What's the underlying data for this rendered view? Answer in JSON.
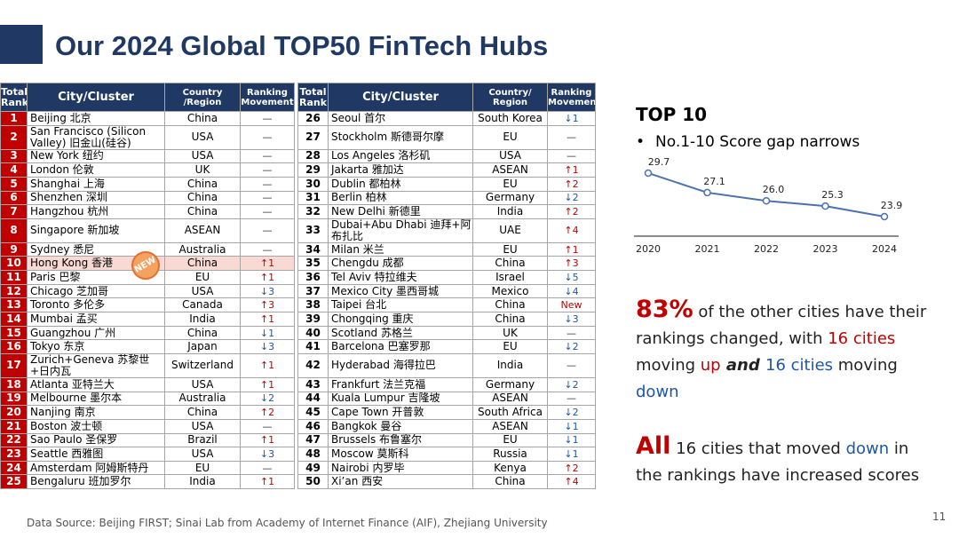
{
  "title": "Our 2024 Global TOP50 FinTech Hubs",
  "headers": {
    "rank": "Total\nRank",
    "city": "City/Cluster",
    "country_left": "Country\n/Region",
    "country_right": "Country/\nRegion",
    "movement": "Ranking\nMovement"
  },
  "left_rows": [
    {
      "rank": "1",
      "city": "Beijing 北京",
      "country": "China",
      "move": "—",
      "dir": "same"
    },
    {
      "rank": "2",
      "city": "San Francisco (Silicon Valley) 旧金山(硅谷)",
      "country": "USA",
      "move": "—",
      "dir": "same",
      "tall": true
    },
    {
      "rank": "3",
      "city": "New York 纽约",
      "country": "USA",
      "move": "—",
      "dir": "same"
    },
    {
      "rank": "4",
      "city": "London 伦敦",
      "country": "UK",
      "move": "—",
      "dir": "same"
    },
    {
      "rank": "5",
      "city": "Shanghai 上海",
      "country": "China",
      "move": "—",
      "dir": "same"
    },
    {
      "rank": "6",
      "city": "Shenzhen 深圳",
      "country": "China",
      "move": "—",
      "dir": "same"
    },
    {
      "rank": "7",
      "city": "Hangzhou 杭州",
      "country": "China",
      "move": "—",
      "dir": "same"
    },
    {
      "rank": "8",
      "city": "Singapore 新加坡",
      "country": "ASEAN",
      "move": "—",
      "dir": "same",
      "tall": true
    },
    {
      "rank": "9",
      "city": "Sydney 悉尼",
      "country": "Australia",
      "move": "—",
      "dir": "same"
    },
    {
      "rank": "10",
      "city": "Hong Kong 香港",
      "country": "China",
      "move": "↑1",
      "dir": "up",
      "hl": true
    },
    {
      "rank": "11",
      "city": "Paris 巴黎",
      "country": "EU",
      "move": "↑1",
      "dir": "up"
    },
    {
      "rank": "12",
      "city": "Chicago 芝加哥",
      "country": "USA",
      "move": "↓3",
      "dir": "down"
    },
    {
      "rank": "13",
      "city": "Toronto 多伦多",
      "country": "Canada",
      "move": "↑3",
      "dir": "up"
    },
    {
      "rank": "14",
      "city": "Mumbai 孟买",
      "country": "India",
      "move": "↑1",
      "dir": "up"
    },
    {
      "rank": "15",
      "city": "Guangzhou 广州",
      "country": "China",
      "move": "↓1",
      "dir": "down"
    },
    {
      "rank": "16",
      "city": "Tokyo 东京",
      "country": "Japan",
      "move": "↓3",
      "dir": "down"
    },
    {
      "rank": "17",
      "city": "Zurich+Geneva 苏黎世+日内瓦",
      "country": "Switzerland",
      "move": "↑1",
      "dir": "up",
      "tall": true
    },
    {
      "rank": "18",
      "city": "Atlanta 亚特兰大",
      "country": "USA",
      "move": "↑1",
      "dir": "up"
    },
    {
      "rank": "19",
      "city": "Melbourne 墨尔本",
      "country": "Australia",
      "move": "↓2",
      "dir": "down"
    },
    {
      "rank": "20",
      "city": "Nanjing 南京",
      "country": "China",
      "move": "↑2",
      "dir": "up"
    },
    {
      "rank": "21",
      "city": "Boston 波士顿",
      "country": "USA",
      "move": "—",
      "dir": "same"
    },
    {
      "rank": "22",
      "city": "Sao Paulo 圣保罗",
      "country": "Brazil",
      "move": "↑1",
      "dir": "up"
    },
    {
      "rank": "23",
      "city": "Seattle 西雅图",
      "country": "USA",
      "move": "↓3",
      "dir": "down"
    },
    {
      "rank": "24",
      "city": "Amsterdam 阿姆斯特丹",
      "country": "EU",
      "move": "—",
      "dir": "same"
    },
    {
      "rank": "25",
      "city": "Bengaluru 班加罗尔",
      "country": "India",
      "move": "↑1",
      "dir": "up"
    }
  ],
  "right_rows": [
    {
      "rank": "26",
      "city": "Seoul 首尔",
      "country": "South Korea",
      "move": "↓1",
      "dir": "down"
    },
    {
      "rank": "27",
      "city": "Stockholm 斯德哥尔摩",
      "country": "EU",
      "move": "—",
      "dir": "same",
      "tall": true
    },
    {
      "rank": "28",
      "city": "Los Angeles 洛杉矶",
      "country": "USA",
      "move": "—",
      "dir": "same"
    },
    {
      "rank": "29",
      "city": "Jakarta 雅加达",
      "country": "ASEAN",
      "move": "↑1",
      "dir": "up"
    },
    {
      "rank": "30",
      "city": "Dublin 都柏林",
      "country": "EU",
      "move": "↑2",
      "dir": "up"
    },
    {
      "rank": "31",
      "city": "Berlin 柏林",
      "country": "Germany",
      "move": "↓2",
      "dir": "down"
    },
    {
      "rank": "32",
      "city": "New Delhi 新德里",
      "country": "India",
      "move": "↑2",
      "dir": "up"
    },
    {
      "rank": "33",
      "city": "Dubai+Abu Dhabi 迪拜+阿布扎比",
      "country": "UAE",
      "move": "↑4",
      "dir": "up",
      "tall": true
    },
    {
      "rank": "34",
      "city": "Milan 米兰",
      "country": "EU",
      "move": "↑1",
      "dir": "up"
    },
    {
      "rank": "35",
      "city": "Chengdu 成都",
      "country": "China",
      "move": "↑3",
      "dir": "up"
    },
    {
      "rank": "36",
      "city": "Tel Aviv 特拉维夫",
      "country": "Israel",
      "move": "↓5",
      "dir": "down"
    },
    {
      "rank": "37",
      "city": "Mexico City 墨西哥城",
      "country": "Mexico",
      "move": "↓4",
      "dir": "down"
    },
    {
      "rank": "38",
      "city": "Taipei 台北",
      "country": "China",
      "move": "New",
      "dir": "new"
    },
    {
      "rank": "39",
      "city": "Chongqing 重庆",
      "country": "China",
      "move": "↓3",
      "dir": "down"
    },
    {
      "rank": "40",
      "city": "Scotland 苏格兰",
      "country": "UK",
      "move": "—",
      "dir": "same"
    },
    {
      "rank": "41",
      "city": "Barcelona 巴塞罗那",
      "country": "EU",
      "move": "↓2",
      "dir": "down"
    },
    {
      "rank": "42",
      "city": "Hyderabad 海得拉巴",
      "country": "India",
      "move": "—",
      "dir": "same",
      "tall": true
    },
    {
      "rank": "43",
      "city": "Frankfurt 法兰克福",
      "country": "Germany",
      "move": "↓2",
      "dir": "down"
    },
    {
      "rank": "44",
      "city": "Kuala Lumpur 吉隆坡",
      "country": "ASEAN",
      "move": "—",
      "dir": "same"
    },
    {
      "rank": "45",
      "city": "Cape Town 开普敦",
      "country": "South Africa",
      "move": "↓2",
      "dir": "down"
    },
    {
      "rank": "46",
      "city": "Bangkok 曼谷",
      "country": "ASEAN",
      "move": "↓1",
      "dir": "down"
    },
    {
      "rank": "47",
      "city": "Brussels 布鲁塞尔",
      "country": "EU",
      "move": "↓1",
      "dir": "down"
    },
    {
      "rank": "48",
      "city": "Moscow 莫斯科",
      "country": "Russia",
      "move": "↓1",
      "dir": "down"
    },
    {
      "rank": "49",
      "city": "Nairobi 内罗毕",
      "country": "Kenya",
      "move": "↑2",
      "dir": "up"
    },
    {
      "rank": "50",
      "city": "Xi’an 西安",
      "country": "China",
      "move": "↑4",
      "dir": "up"
    }
  ],
  "new_badge": "NEW",
  "top10": {
    "heading": "TOP 10",
    "bullet": "No.1-10 Score gap narrows",
    "bullet_mark": "•"
  },
  "chart_data": {
    "type": "line",
    "x": [
      "2020",
      "2021",
      "2022",
      "2023",
      "2024"
    ],
    "series": [
      {
        "values": [
          29.7,
          27.1,
          26.0,
          25.3,
          23.9
        ]
      }
    ],
    "data_labels": [
      "29.7",
      "27.1",
      "26.0",
      "25.3",
      "23.9"
    ],
    "ylim": [
      22,
      31
    ],
    "color": "#4a72b0"
  },
  "para1": {
    "big": "83%",
    "t1": " of the other cities have their rankings changed, with ",
    "red1": "16 cities",
    "t2": " moving ",
    "red2": "up",
    "bi": " and ",
    "blue1": "16 cities",
    "t3": " moving ",
    "blue2": "down"
  },
  "para2": {
    "big": "All",
    "t1": " 16 cities that moved ",
    "blue1": "down",
    "t2": " in the rankings have increased scores"
  },
  "source": "Data Source: Beijing FIRST; Sinai Lab from Academy of Internet Finance (AIF), Zhejiang University",
  "page_number": "11",
  "colors": {
    "navy": "#1f3864",
    "red": "#c00000",
    "blue": "#1f57a8",
    "highlight": "#f8d9d4"
  }
}
